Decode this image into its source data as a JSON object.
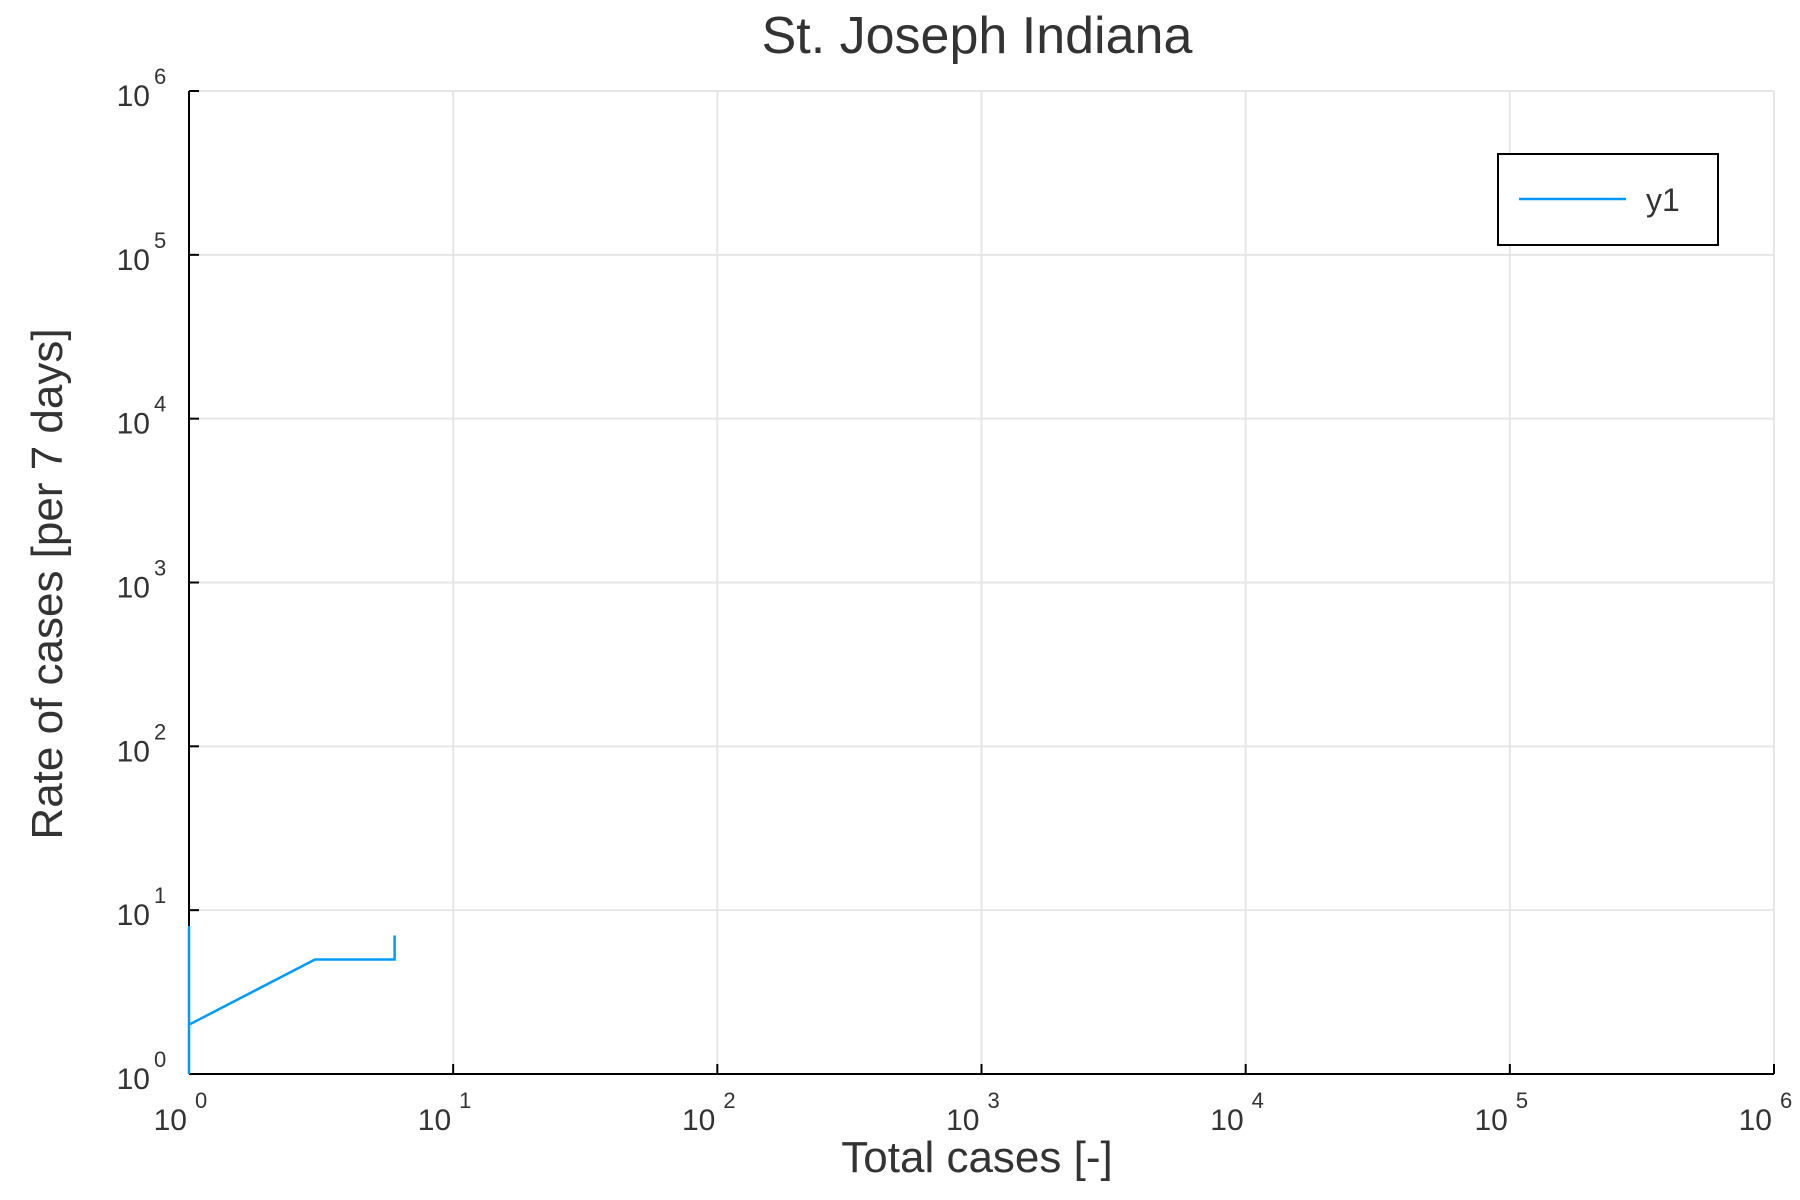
{
  "chart_data": {
    "type": "line",
    "title": "St. Joseph Indiana",
    "xlabel": "Total cases [-]",
    "ylabel": "Rate of cases [per 7 days]",
    "xscale": "log",
    "yscale": "log",
    "xlim": [
      1,
      1000000
    ],
    "ylim": [
      1,
      1000000
    ],
    "grid": true,
    "legend": "top-right",
    "x_ticks": [
      {
        "base": "10",
        "exp": "0",
        "value": 1
      },
      {
        "base": "10",
        "exp": "1",
        "value": 10
      },
      {
        "base": "10",
        "exp": "2",
        "value": 100
      },
      {
        "base": "10",
        "exp": "3",
        "value": 1000
      },
      {
        "base": "10",
        "exp": "4",
        "value": 10000
      },
      {
        "base": "10",
        "exp": "5",
        "value": 100000
      },
      {
        "base": "10",
        "exp": "6",
        "value": 1000000
      }
    ],
    "y_ticks": [
      {
        "base": "10",
        "exp": "0",
        "value": 1
      },
      {
        "base": "10",
        "exp": "1",
        "value": 10
      },
      {
        "base": "10",
        "exp": "2",
        "value": 100
      },
      {
        "base": "10",
        "exp": "3",
        "value": 1000
      },
      {
        "base": "10",
        "exp": "4",
        "value": 10000
      },
      {
        "base": "10",
        "exp": "5",
        "value": 100000
      },
      {
        "base": "10",
        "exp": "6",
        "value": 1000000
      }
    ],
    "series": [
      {
        "name": "y1",
        "color": "#009AFA",
        "x": [
          1,
          1,
          1,
          3,
          6,
          6
        ],
        "y": [
          8,
          1,
          2,
          5,
          5,
          7
        ]
      }
    ]
  }
}
